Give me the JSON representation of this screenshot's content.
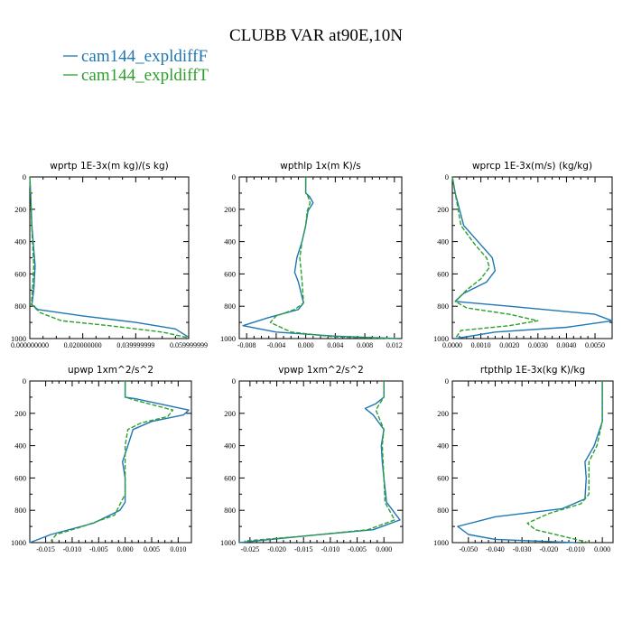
{
  "title": "CLUBB VAR at90E,10N",
  "legend": {
    "placement": "top-left",
    "entries": [
      {
        "name": "cam144_expldiffF",
        "color": "#1f77b4",
        "dash": "solid"
      },
      {
        "name": "cam144_expldiffT",
        "color": "#2ca02c",
        "dash": "dashed"
      }
    ]
  },
  "chart_data": [
    {
      "type": "line",
      "title": "wprtp  1E-3x(m kg)/(s kg)",
      "xlim": [
        0,
        0.06
      ],
      "ylim": [
        1000,
        0
      ],
      "grid": false,
      "xticks": [
        0.0,
        0.02,
        0.04,
        0.06
      ],
      "xtick_labels": [
        "0.000000000",
        "0.020000000",
        "0.039999999",
        "0.059999999"
      ],
      "yticks": [
        0,
        200,
        400,
        600,
        800,
        1000
      ],
      "series": [
        {
          "name": "cam144_expldiffF",
          "x": [
            0.0,
            0.0003,
            0.0008,
            0.0015,
            0.002,
            0.0015,
            0.0008,
            0.003,
            0.02,
            0.04,
            0.055,
            0.0598
          ],
          "y": [
            0,
            100,
            300,
            450,
            550,
            700,
            790,
            820,
            860,
            900,
            940,
            990
          ]
        },
        {
          "name": "cam144_expldiffT",
          "x": [
            0.0,
            0.0003,
            0.0007,
            0.0012,
            0.0015,
            0.001,
            0.0006,
            0.004,
            0.012,
            0.03,
            0.05,
            0.0598
          ],
          "y": [
            0,
            100,
            300,
            450,
            550,
            700,
            790,
            840,
            890,
            920,
            960,
            995
          ]
        }
      ]
    },
    {
      "type": "line",
      "title": "wpthlp  1x(m K)/s",
      "xlim": [
        -0.009,
        0.013
      ],
      "ylim": [
        1000,
        0
      ],
      "grid": false,
      "xticks": [
        -0.008,
        -0.004,
        0.0,
        0.004,
        0.008,
        0.012
      ],
      "xtick_labels": [
        "-0.008",
        "-0.004",
        "0.000",
        "0.004",
        "0.008",
        "0.012"
      ],
      "yticks": [
        0,
        200,
        400,
        600,
        800,
        1000
      ],
      "series": [
        {
          "name": "cam144_expldiffF",
          "x": [
            0.0,
            0.0,
            0.0005,
            0.001,
            0.0003,
            0.0,
            -0.0005,
            -0.0012,
            -0.0015,
            -0.001,
            -0.0003,
            -0.001,
            -0.005,
            -0.0085,
            -0.004,
            0.004,
            0.0125
          ],
          "y": [
            0,
            100,
            120,
            160,
            210,
            300,
            400,
            500,
            590,
            650,
            780,
            820,
            870,
            920,
            960,
            985,
            1000
          ]
        },
        {
          "name": "cam144_expldiffT",
          "x": [
            0.0,
            0.0,
            0.0003,
            0.0006,
            0.0002,
            0.0,
            -0.0005,
            -0.0008,
            -0.0005,
            -0.0003,
            -0.0015,
            -0.004,
            -0.0048,
            -0.002,
            0.004,
            0.0125
          ],
          "y": [
            0,
            100,
            120,
            160,
            210,
            300,
            400,
            500,
            640,
            780,
            820,
            860,
            900,
            960,
            990,
            1000
          ]
        }
      ]
    },
    {
      "type": "line",
      "title": "wprcp  1E-3x(m/s) (kg/kg)",
      "xlim": [
        0,
        0.0056
      ],
      "ylim": [
        1000,
        0
      ],
      "grid": false,
      "xticks": [
        0.0,
        0.001,
        0.002,
        0.003,
        0.004,
        0.005
      ],
      "xtick_labels": [
        "0.0000",
        "0.0010",
        "0.0020",
        "0.0030",
        "0.0040",
        "0.0050"
      ],
      "yticks": [
        0,
        200,
        400,
        600,
        800,
        1000
      ],
      "series": [
        {
          "name": "cam144_expldiffF",
          "x": [
            0.0,
            0.0001,
            0.0004,
            0.001,
            0.0014,
            0.0015,
            0.0012,
            0.0004,
            0.0001,
            0.002,
            0.005,
            0.0056,
            0.004,
            0.0015,
            0.0001
          ],
          "y": [
            0,
            100,
            300,
            420,
            500,
            580,
            650,
            720,
            770,
            800,
            850,
            890,
            930,
            960,
            1000
          ]
        },
        {
          "name": "cam144_expldiffT",
          "x": [
            0.0,
            0.0001,
            0.0003,
            0.0008,
            0.0012,
            0.0013,
            0.001,
            0.0005,
            0.0001,
            0.0005,
            0.002,
            0.003,
            0.002,
            0.0003,
            0.0001
          ],
          "y": [
            0,
            100,
            300,
            420,
            500,
            560,
            630,
            700,
            770,
            810,
            850,
            890,
            920,
            950,
            1000
          ]
        }
      ]
    },
    {
      "type": "line",
      "title": "upwp  1xm^2/s^2",
      "xlim": [
        -0.018,
        0.0125
      ],
      "ylim": [
        1000,
        0
      ],
      "grid": false,
      "xticks": [
        -0.015,
        -0.01,
        -0.005,
        0.0,
        0.005,
        0.01
      ],
      "xtick_labels": [
        "-0.015",
        "-0.010",
        "-0.005",
        "0.000",
        "0.005",
        "0.010"
      ],
      "yticks": [
        0,
        200,
        400,
        600,
        800,
        1000
      ],
      "series": [
        {
          "name": "cam144_expldiffF",
          "x": [
            0.0,
            0.0,
            0.002,
            0.012,
            0.011,
            0.005,
            0.0015,
            0.0005,
            -0.0005,
            0.0,
            0.0,
            -0.001,
            -0.006,
            -0.014,
            -0.018
          ],
          "y": [
            0,
            100,
            110,
            180,
            210,
            250,
            300,
            400,
            500,
            600,
            750,
            800,
            880,
            950,
            1000
          ]
        },
        {
          "name": "cam144_expldiffT",
          "x": [
            0.0,
            0.0,
            0.002,
            0.009,
            0.008,
            0.003,
            0.0005,
            0.0,
            0.0,
            0.0,
            -0.002,
            -0.008,
            -0.013,
            -0.014
          ],
          "y": [
            0,
            100,
            120,
            180,
            220,
            260,
            300,
            400,
            500,
            700,
            830,
            900,
            950,
            990
          ]
        }
      ]
    },
    {
      "type": "line",
      "title": "vpwp  1xm^2/s^2",
      "xlim": [
        -0.027,
        0.0035
      ],
      "ylim": [
        1000,
        0
      ],
      "grid": false,
      "xticks": [
        -0.025,
        -0.02,
        -0.015,
        -0.01,
        -0.005,
        0.0
      ],
      "xtick_labels": [
        "-0.025",
        "-0.020",
        "-0.015",
        "-0.010",
        "-0.005",
        "0.000"
      ],
      "yticks": [
        0,
        200,
        400,
        600,
        800,
        1000
      ],
      "series": [
        {
          "name": "cam144_expldiffF",
          "x": [
            0.0,
            0.0,
            -0.0015,
            -0.0035,
            -0.002,
            0.0,
            -0.0005,
            -0.0003,
            0.0,
            0.0005,
            0.003,
            -0.002,
            -0.015,
            -0.027
          ],
          "y": [
            0,
            100,
            140,
            170,
            210,
            300,
            400,
            500,
            600,
            750,
            860,
            920,
            960,
            1000
          ]
        },
        {
          "name": "cam144_expldiffT",
          "x": [
            0.0,
            0.0,
            -0.0008,
            -0.0015,
            -0.001,
            0.0,
            -0.0003,
            0.0,
            0.0002,
            0.002,
            -0.003,
            -0.015,
            -0.026
          ],
          "y": [
            0,
            100,
            140,
            180,
            220,
            300,
            400,
            600,
            750,
            860,
            920,
            960,
            990
          ]
        }
      ]
    },
    {
      "type": "line",
      "title": "rtpthlp  1E-3x(kg K)/kg",
      "xlim": [
        -0.056,
        0.004
      ],
      "ylim": [
        1000,
        0
      ],
      "grid": false,
      "xticks": [
        -0.05,
        -0.04,
        -0.03,
        -0.02,
        -0.01,
        0.0
      ],
      "xtick_labels": [
        "-0.050",
        "-0.040",
        "-0.030",
        "-0.020",
        "-0.010",
        "0.000"
      ],
      "yticks": [
        0,
        200,
        400,
        600,
        800,
        1000
      ],
      "series": [
        {
          "name": "cam144_expldiffF",
          "x": [
            0.0,
            0.0,
            -0.003,
            -0.0065,
            -0.006,
            -0.0065,
            -0.015,
            -0.04,
            -0.054,
            -0.05,
            -0.04,
            -0.01
          ],
          "y": [
            0,
            250,
            400,
            500,
            600,
            730,
            790,
            840,
            900,
            950,
            980,
            1000
          ]
        },
        {
          "name": "cam144_expldiffT",
          "x": [
            0.0,
            0.0,
            -0.002,
            -0.005,
            -0.005,
            -0.005,
            -0.008,
            -0.02,
            -0.028,
            -0.025,
            -0.015,
            -0.005
          ],
          "y": [
            0,
            250,
            400,
            500,
            600,
            700,
            760,
            820,
            880,
            920,
            960,
            1000
          ]
        }
      ]
    }
  ]
}
